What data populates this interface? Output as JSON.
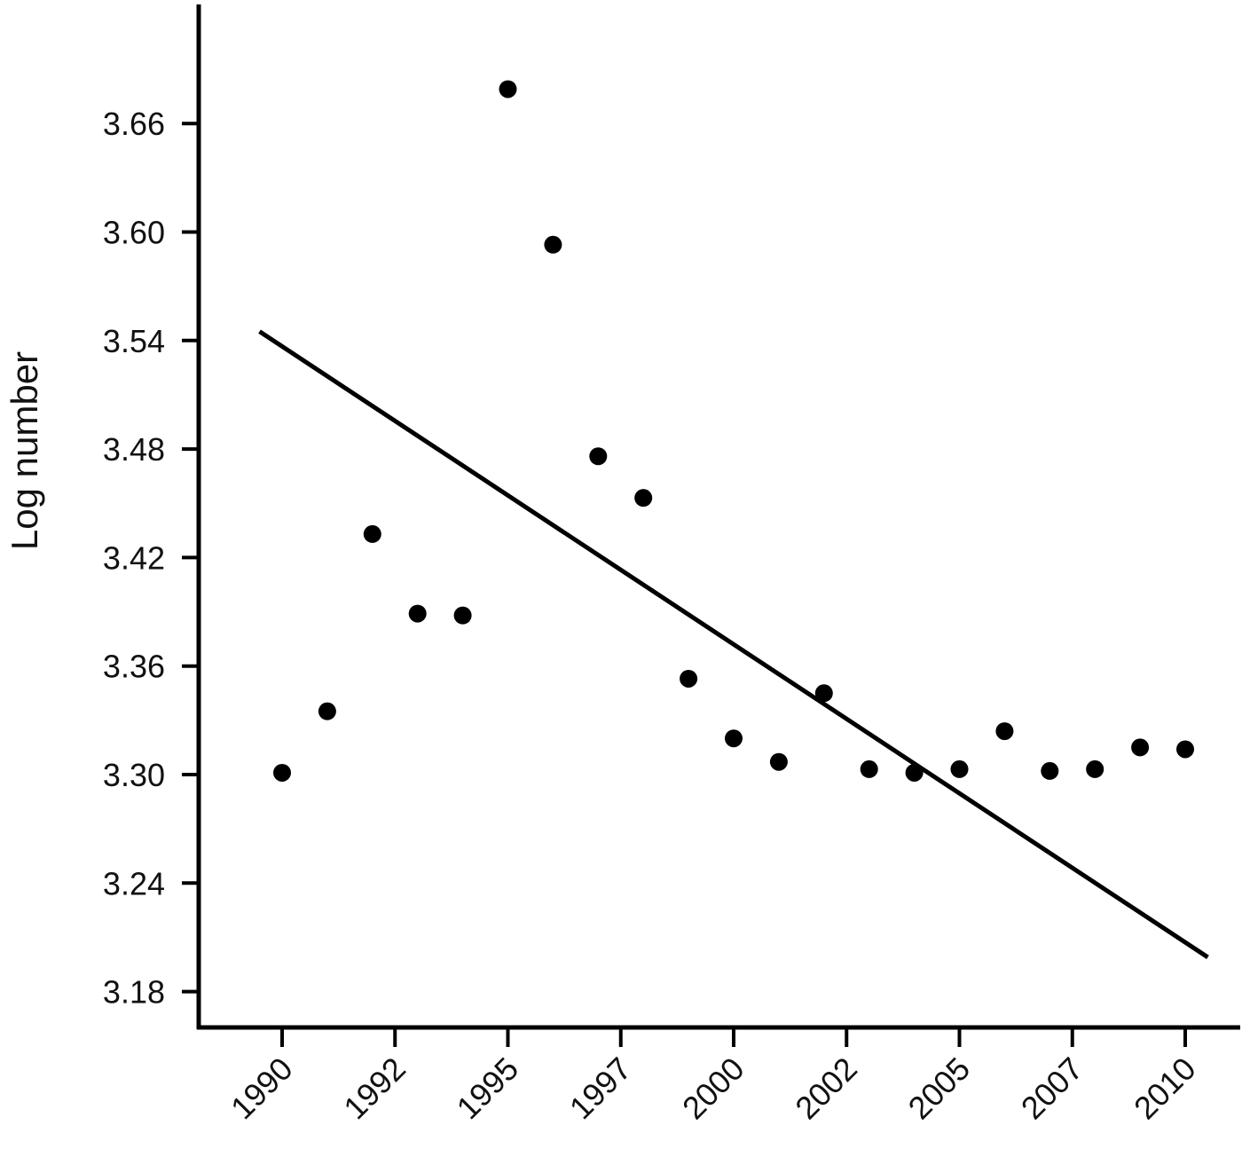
{
  "chart_data": {
    "type": "scatter",
    "title": "",
    "xlabel": "",
    "ylabel": "Log number",
    "xlim": [
      1988.2,
      2011.2
    ],
    "ylim": [
      3.16,
      3.725
    ],
    "x_tick_values": [
      1990,
      1992.5,
      1995,
      1997.5,
      2000,
      2002.5,
      2005,
      2007.5,
      2010
    ],
    "x_tick_labels": [
      "1990",
      "1992",
      "1995",
      "1997",
      "2000",
      "2002",
      "2005",
      "2007",
      "2010"
    ],
    "y_ticks": [
      3.18,
      3.24,
      3.3,
      3.36,
      3.42,
      3.48,
      3.54,
      3.6,
      3.66
    ],
    "y_tick_labels": [
      "3.18",
      "3.24",
      "3.30",
      "3.36",
      "3.42",
      "3.48",
      "3.54",
      "3.60",
      "3.66"
    ],
    "grid": false,
    "legend": "none",
    "series": [
      {
        "x": [
          1990,
          1991,
          1992,
          1993,
          1994,
          1995,
          1996,
          1997,
          1998,
          1999,
          2000,
          2001,
          2002,
          2003,
          2004,
          2005,
          2006,
          2007,
          2008,
          2009,
          2010
        ],
        "y": [
          3.301,
          3.335,
          3.433,
          3.389,
          3.388,
          3.679,
          3.593,
          3.476,
          3.453,
          3.353,
          3.32,
          3.307,
          3.345,
          3.303,
          3.301,
          3.303,
          3.324,
          3.302,
          3.303,
          3.315,
          3.314
        ],
        "color": "#000000"
      }
    ],
    "trend_line": {
      "x": [
        1989.5,
        2010.5
      ],
      "y": [
        3.545,
        3.199
      ],
      "color": "#000000"
    }
  }
}
